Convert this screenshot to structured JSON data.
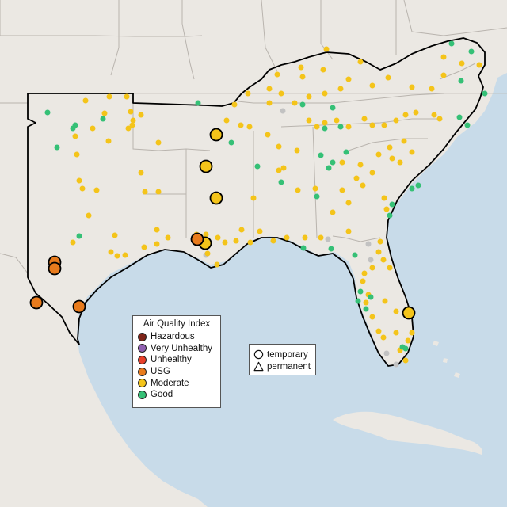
{
  "map": {
    "colors": {
      "water": "#c8dbe9",
      "land": "#ebe8e3",
      "border": "#b9b4ae",
      "region_outline": "#000000",
      "monitor_none": "#c2c2c2"
    }
  },
  "aqi_legend": {
    "title": "Air Quality Index",
    "items": [
      {
        "label": "Hazardous",
        "color": "#7e2418"
      },
      {
        "label": "Very Unhealthy",
        "color": "#8f5fb0"
      },
      {
        "label": "Unhealthy",
        "color": "#e8402a"
      },
      {
        "label": "USG",
        "color": "#e87b1d"
      },
      {
        "label": "Moderate",
        "color": "#f4c41a"
      },
      {
        "label": "Good",
        "color": "#35c076"
      }
    ]
  },
  "type_legend": {
    "items": [
      {
        "label": "temporary",
        "icon": "circle-outline-icon"
      },
      {
        "label": "permanent",
        "icon": "triangle-outline-icon"
      }
    ]
  }
}
